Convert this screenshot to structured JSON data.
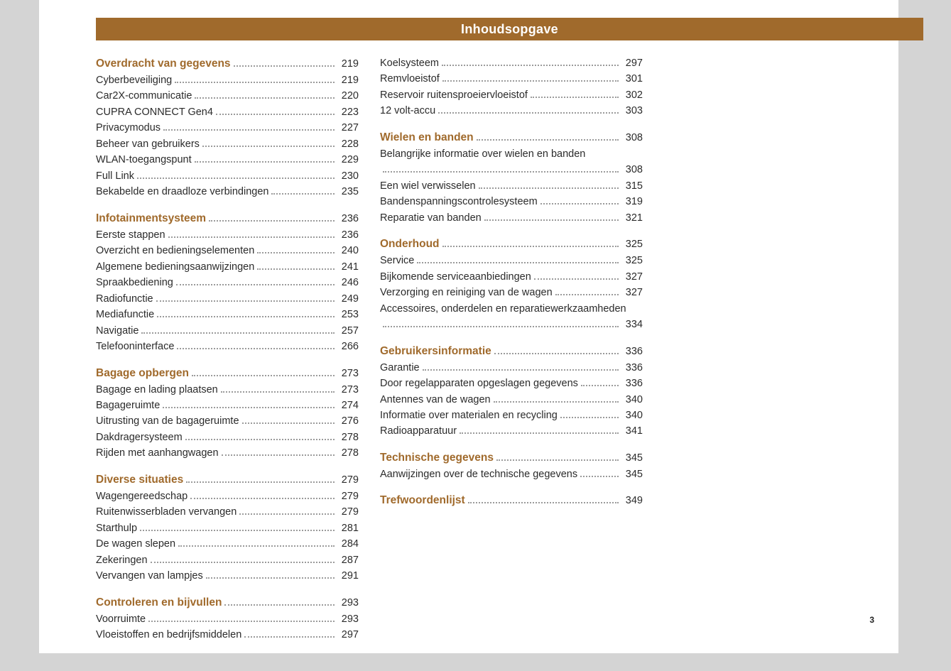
{
  "header": {
    "title": "Inhoudsopgave"
  },
  "page_number": "3",
  "colors": {
    "page_bg": "#ffffff",
    "canvas_bg": "#d4d4d4",
    "header_bg": "#a06a2c",
    "header_fg": "#ffffff",
    "section_color": "#a06a2c",
    "text_color": "#2b2b2b",
    "dot_color": "#9b9b9b"
  },
  "typography": {
    "base_font": "Segoe UI, Arial, sans-serif",
    "base_size_pt": 11,
    "section_size_pt": 12,
    "header_size_pt": 14
  },
  "columns": [
    [
      {
        "type": "section",
        "label": "Overdracht van gegevens",
        "page": "219"
      },
      {
        "type": "item",
        "label": "Cyberbeveiliging",
        "page": "219"
      },
      {
        "type": "item",
        "label": "Car2X-communicatie",
        "page": "220"
      },
      {
        "type": "item",
        "label": "CUPRA CONNECT Gen4",
        "page": "223"
      },
      {
        "type": "item",
        "label": "Privacymodus",
        "page": "227"
      },
      {
        "type": "item",
        "label": "Beheer van gebruikers",
        "page": "228"
      },
      {
        "type": "item",
        "label": "WLAN-toegangspunt",
        "page": "229"
      },
      {
        "type": "item",
        "label": "Full Link",
        "page": "230"
      },
      {
        "type": "item",
        "label": "Bekabelde en draadloze verbindingen",
        "page": "235"
      },
      {
        "type": "section",
        "label": "Infotainmentsysteem",
        "page": "236"
      },
      {
        "type": "item",
        "label": "Eerste stappen",
        "page": "236"
      },
      {
        "type": "item",
        "label": "Overzicht en bedieningselementen",
        "page": "240"
      },
      {
        "type": "item",
        "label": "Algemene bedieningsaanwijzingen",
        "page": "241"
      },
      {
        "type": "item",
        "label": "Spraakbediening",
        "page": "246"
      },
      {
        "type": "item",
        "label": "Radiofunctie",
        "page": "249"
      },
      {
        "type": "item",
        "label": "Mediafunctie",
        "page": "253"
      },
      {
        "type": "item",
        "label": "Navigatie",
        "page": "257"
      },
      {
        "type": "item",
        "label": "Telefooninterface",
        "page": "266"
      },
      {
        "type": "section",
        "label": "Bagage opbergen",
        "page": "273"
      },
      {
        "type": "item",
        "label": "Bagage en lading plaatsen",
        "page": "273"
      },
      {
        "type": "item",
        "label": "Bagageruimte",
        "page": "274"
      },
      {
        "type": "item",
        "label": "Uitrusting van de bagageruimte",
        "page": "276"
      },
      {
        "type": "item",
        "label": "Dakdragersysteem",
        "page": "278"
      },
      {
        "type": "item",
        "label": "Rijden met aanhangwagen",
        "page": "278"
      },
      {
        "type": "section",
        "label": "Diverse situaties",
        "page": "279"
      },
      {
        "type": "item",
        "label": "Wagengereedschap",
        "page": "279"
      },
      {
        "type": "item",
        "label": "Ruitenwisserbladen vervangen",
        "page": "279"
      },
      {
        "type": "item",
        "label": "Starthulp",
        "page": "281"
      },
      {
        "type": "item",
        "label": "De wagen slepen",
        "page": "284"
      },
      {
        "type": "item",
        "label": "Zekeringen",
        "page": "287"
      },
      {
        "type": "item",
        "label": "Vervangen van lampjes",
        "page": "291"
      },
      {
        "type": "section",
        "label": "Controleren en bijvullen",
        "page": "293"
      },
      {
        "type": "item",
        "label": "Voorruimte",
        "page": "293"
      },
      {
        "type": "item",
        "label": "Vloeistoffen en bedrijfsmiddelen",
        "page": "297"
      }
    ],
    [
      {
        "type": "item",
        "label": "Koelsysteem",
        "page": "297"
      },
      {
        "type": "item",
        "label": "Remvloeistof",
        "page": "301"
      },
      {
        "type": "item",
        "label": "Reservoir ruitensproeiervloeistof",
        "page": "302"
      },
      {
        "type": "item",
        "label": "12 volt-accu",
        "page": "303"
      },
      {
        "type": "section",
        "label": "Wielen en banden",
        "page": "308"
      },
      {
        "type": "item",
        "label": "Belangrijke informatie over wielen en banden",
        "page": "308",
        "wrap": true
      },
      {
        "type": "item",
        "label": "Een wiel verwisselen",
        "page": "315"
      },
      {
        "type": "item",
        "label": "Bandenspanningscontrolesysteem",
        "page": "319"
      },
      {
        "type": "item",
        "label": "Reparatie van banden",
        "page": "321"
      },
      {
        "type": "section",
        "label": "Onderhoud",
        "page": "325"
      },
      {
        "type": "item",
        "label": "Service",
        "page": "325"
      },
      {
        "type": "item",
        "label": "Bijkomende serviceaanbiedingen",
        "page": "327"
      },
      {
        "type": "item",
        "label": "Verzorging en reiniging van de wagen",
        "page": "327"
      },
      {
        "type": "item",
        "label": "Accessoires, onderdelen en reparatiewerkzaamheden",
        "page": "334",
        "wrap": true
      },
      {
        "type": "section",
        "label": "Gebruikersinformatie",
        "page": "336"
      },
      {
        "type": "item",
        "label": "Garantie",
        "page": "336"
      },
      {
        "type": "item",
        "label": "Door regelapparaten opgeslagen gegevens",
        "page": "336"
      },
      {
        "type": "item",
        "label": "Antennes van de wagen",
        "page": "340"
      },
      {
        "type": "item",
        "label": "Informatie over materialen en recycling",
        "page": "340"
      },
      {
        "type": "item",
        "label": "Radioapparatuur",
        "page": "341"
      },
      {
        "type": "section",
        "label": "Technische gegevens",
        "page": "345"
      },
      {
        "type": "item",
        "label": "Aanwijzingen over de technische gegevens",
        "page": "345"
      },
      {
        "type": "section",
        "label": "Trefwoordenlijst",
        "page": "349"
      }
    ]
  ]
}
